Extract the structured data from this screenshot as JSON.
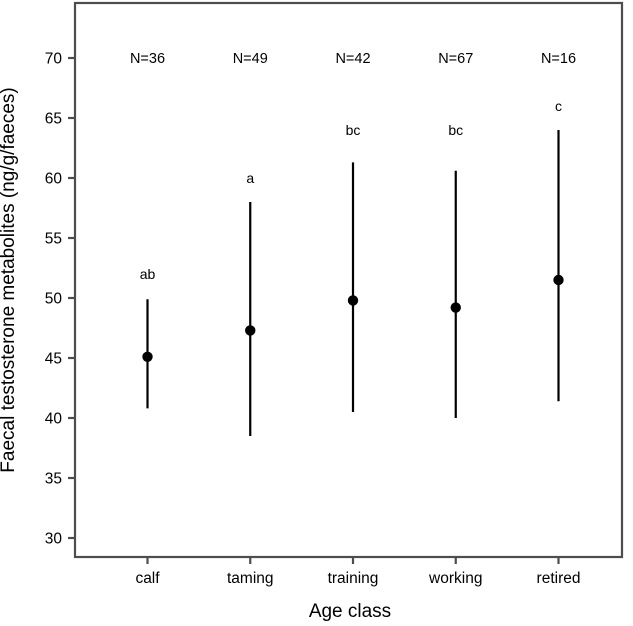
{
  "figure": {
    "background_color": "#ffffff",
    "frame_color": "#4d4d4d",
    "data_color": "#000000"
  },
  "chart_data": {
    "type": "scatter",
    "subtype": "point-estimates-with-error-bars",
    "title": "",
    "xlabel": "Age class",
    "ylabel": "Faecal testosterone metabolites (ng/g/faeces)",
    "categories": [
      "calf",
      "taming",
      "training",
      "working",
      "retired"
    ],
    "yticks": [
      30,
      35,
      40,
      45,
      50,
      55,
      60,
      65,
      70
    ],
    "ylim": [
      28.4,
      74.6
    ],
    "grid": false,
    "legend": "none",
    "n_labels_y": 70,
    "points": [
      {
        "category": "calf",
        "mean": 45.1,
        "lower": 40.8,
        "upper": 49.9,
        "n_label": "N=36",
        "sig_letter": "ab",
        "letter_y": 52.0
      },
      {
        "category": "taming",
        "mean": 47.3,
        "lower": 38.5,
        "upper": 58.0,
        "n_label": "N=49",
        "sig_letter": "a",
        "letter_y": 60.0
      },
      {
        "category": "training",
        "mean": 49.8,
        "lower": 40.5,
        "upper": 61.3,
        "n_label": "N=42",
        "sig_letter": "bc",
        "letter_y": 64.0
      },
      {
        "category": "working",
        "mean": 49.2,
        "lower": 40.0,
        "upper": 60.6,
        "n_label": "N=67",
        "sig_letter": "bc",
        "letter_y": 64.0
      },
      {
        "category": "retired",
        "mean": 51.5,
        "lower": 41.4,
        "upper": 64.0,
        "n_label": "N=16",
        "sig_letter": "c",
        "letter_y": 66.0
      }
    ]
  }
}
